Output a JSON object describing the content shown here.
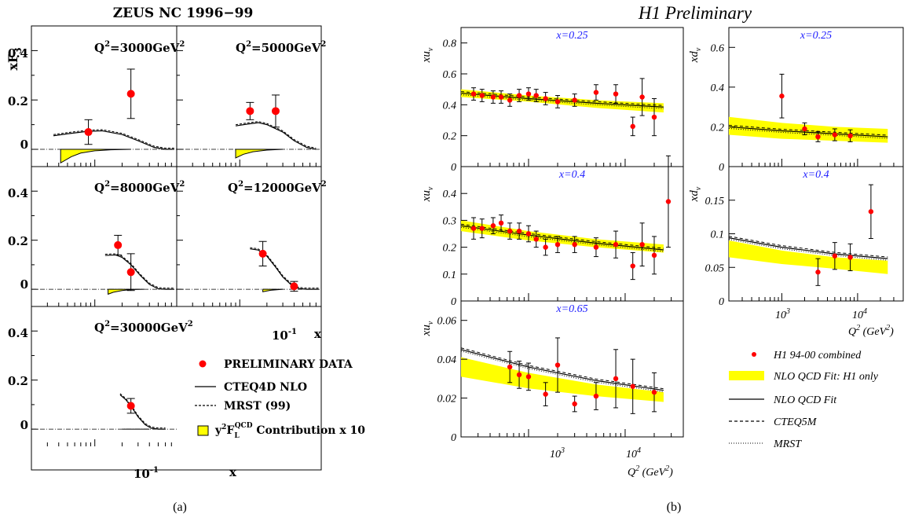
{
  "chart_data": [
    {
      "type": "scatter",
      "panel_label": "(a)",
      "title": "ZEUS NC 1996−99",
      "ylabel": "xF",
      "ylabel_sub": "3",
      "xlabel": "x",
      "x_scale": "log",
      "xlim": [
        0.02,
        0.8
      ],
      "ylim": [
        -0.07,
        0.5
      ],
      "x_tick_label": "10",
      "x_tick_label_exp": "-1",
      "y_ticks": [
        "0",
        "0.2",
        "0.4"
      ],
      "legend": {
        "data": "PRELIMINARY DATA",
        "cteq": "CTEQ4D NLO",
        "mrst": "MRST (99)",
        "fl_pre": "y",
        "fl_sup": "2",
        "fl_mid": "F",
        "fl_sub": "L",
        "fl_qcd": "QCD",
        "fl_post": " Contribution x 10"
      },
      "panels": [
        {
          "label": "Q",
          "label_post": "=3000GeV",
          "sup1": "2",
          "sup2": "2",
          "points": [
            {
              "x": 0.085,
              "y": 0.07,
              "err": 0.05
            },
            {
              "x": 0.25,
              "y": 0.225,
              "err": 0.1
            }
          ],
          "theory": [
            [
              0.035,
              0.055
            ],
            [
              0.05,
              0.063
            ],
            [
              0.08,
              0.072
            ],
            [
              0.12,
              0.075
            ],
            [
              0.2,
              0.06
            ],
            [
              0.3,
              0.035
            ],
            [
              0.45,
              0.008
            ],
            [
              0.6,
              0.0
            ],
            [
              0.75,
              0.0
            ]
          ],
          "fl": [
            [
              0.042,
              -0.055
            ],
            [
              0.055,
              -0.03
            ],
            [
              0.07,
              -0.015
            ],
            [
              0.1,
              -0.006
            ],
            [
              0.15,
              -0.002
            ],
            [
              0.25,
              0.0
            ]
          ]
        },
        {
          "label": "Q",
          "label_post": "=5000GeV",
          "sup1": "2",
          "sup2": "2",
          "points": [
            {
              "x": 0.13,
              "y": 0.155,
              "err": 0.035
            },
            {
              "x": 0.25,
              "y": 0.155,
              "err": 0.065
            }
          ],
          "theory": [
            [
              0.09,
              0.095
            ],
            [
              0.12,
              0.102
            ],
            [
              0.16,
              0.108
            ],
            [
              0.2,
              0.1
            ],
            [
              0.3,
              0.07
            ],
            [
              0.4,
              0.035
            ],
            [
              0.55,
              0.008
            ],
            [
              0.7,
              0.0
            ]
          ],
          "fl": [
            [
              0.09,
              -0.035
            ],
            [
              0.11,
              -0.02
            ],
            [
              0.14,
              -0.01
            ],
            [
              0.2,
              -0.003
            ],
            [
              0.3,
              0.0
            ]
          ]
        },
        {
          "label": "Q",
          "label_post": "=8000GeV",
          "sup1": "2",
          "sup2": "2",
          "points": [
            {
              "x": 0.18,
              "y": 0.18,
              "err": 0.04
            },
            {
              "x": 0.25,
              "y": 0.07,
              "err": 0.075
            }
          ],
          "theory": [
            [
              0.13,
              0.138
            ],
            [
              0.17,
              0.14
            ],
            [
              0.2,
              0.13
            ],
            [
              0.25,
              0.1
            ],
            [
              0.32,
              0.055
            ],
            [
              0.4,
              0.02
            ],
            [
              0.5,
              0.002
            ],
            [
              0.6,
              0.0
            ],
            [
              0.75,
              0.0
            ]
          ],
          "fl": [
            [
              0.14,
              -0.02
            ],
            [
              0.16,
              -0.012
            ],
            [
              0.2,
              -0.005
            ],
            [
              0.25,
              -0.001
            ],
            [
              0.35,
              0.0
            ]
          ]
        },
        {
          "label": "Q",
          "label_post": "=12000GeV",
          "sup1": "2",
          "sup2": "2",
          "points": [
            {
              "x": 0.18,
              "y": 0.145,
              "err": 0.05
            },
            {
              "x": 0.4,
              "y": 0.012,
              "err": 0.02
            }
          ],
          "theory": [
            [
              0.13,
              0.165
            ],
            [
              0.16,
              0.16
            ],
            [
              0.2,
              0.135
            ],
            [
              0.25,
              0.09
            ],
            [
              0.3,
              0.05
            ],
            [
              0.38,
              0.015
            ],
            [
              0.45,
              0.003
            ],
            [
              0.55,
              0.0
            ],
            [
              0.75,
              0.0
            ]
          ],
          "fl": [
            [
              0.18,
              -0.01
            ],
            [
              0.22,
              -0.004
            ],
            [
              0.3,
              0.0
            ]
          ]
        },
        {
          "label": "Q",
          "label_post": "=30000GeV",
          "sup1": "2",
          "sup2": "2",
          "points": [
            {
              "x": 0.25,
              "y": 0.095,
              "err": 0.03
            }
          ],
          "theory": [
            [
              0.19,
              0.14
            ],
            [
              0.22,
              0.12
            ],
            [
              0.26,
              0.085
            ],
            [
              0.3,
              0.05
            ],
            [
              0.36,
              0.018
            ],
            [
              0.42,
              0.004
            ],
            [
              0.5,
              0.0
            ],
            [
              0.6,
              0.0
            ]
          ],
          "fl": [
            [
              0.2,
              0.0
            ],
            [
              0.4,
              0.0
            ]
          ]
        }
      ]
    },
    {
      "type": "scatter",
      "panel_label": "(b)",
      "title": "H1 Preliminary",
      "x_scale": "log",
      "xlim": [
        200,
        40000
      ],
      "x_tick_labels": [
        {
          "base": "10",
          "exp": "3"
        },
        {
          "base": "10",
          "exp": "4"
        }
      ],
      "xlabel_pre": "Q",
      "xlabel_sup": "2",
      "xlabel_post": " (GeV",
      "xlabel_sup2": "2",
      "xlabel_end": ")",
      "legend": {
        "data": "H1 94-00 combined",
        "band": "NLO QCD Fit: H1 only",
        "fit": "NLO QCD Fit",
        "cteq": "CTEQ5M",
        "mrst": "MRST"
      },
      "panels": [
        {
          "id": "xu-025",
          "ylabel": "xu",
          "ylabel_sub": "v",
          "x_value_label": "x=0.25",
          "ylim": [
            0,
            0.9
          ],
          "y_ticks": [
            "0",
            "0.2",
            "0.4",
            "0.6",
            "0.8"
          ],
          "points": [
            [
              270,
              0.47,
              0.04
            ],
            [
              330,
              0.46,
              0.04
            ],
            [
              430,
              0.45,
              0.04
            ],
            [
              520,
              0.45,
              0.04
            ],
            [
              640,
              0.43,
              0.04
            ],
            [
              800,
              0.46,
              0.04
            ],
            [
              1000,
              0.47,
              0.04
            ],
            [
              1200,
              0.46,
              0.04
            ],
            [
              1500,
              0.44,
              0.04
            ],
            [
              2000,
              0.42,
              0.04
            ],
            [
              3000,
              0.43,
              0.04
            ],
            [
              5000,
              0.48,
              0.05
            ],
            [
              8000,
              0.47,
              0.06
            ],
            [
              12000,
              0.26,
              0.06
            ],
            [
              15000,
              0.45,
              0.12
            ],
            [
              20000,
              0.32,
              0.12
            ]
          ],
          "fit": [
            [
              200,
              0.475
            ],
            [
              1000,
              0.44
            ],
            [
              5000,
              0.41
            ],
            [
              25000,
              0.385
            ]
          ],
          "band": [
            [
              200,
              0.5,
              0.45
            ],
            [
              1000,
              0.46,
              0.42
            ],
            [
              5000,
              0.43,
              0.38
            ],
            [
              25000,
              0.41,
              0.35
            ]
          ]
        },
        {
          "id": "xd-025",
          "ylabel": "xd",
          "ylabel_sub": "v",
          "x_value_label": "x=0.25",
          "ylim": [
            0,
            0.7
          ],
          "y_ticks": [
            "0",
            "0.2",
            "0.4",
            "0.6"
          ],
          "points": [
            [
              1000,
              0.355,
              0.11
            ],
            [
              2000,
              0.19,
              0.03
            ],
            [
              3000,
              0.15,
              0.025
            ],
            [
              5000,
              0.16,
              0.03
            ],
            [
              8000,
              0.155,
              0.03
            ]
          ],
          "fit": [
            [
              200,
              0.2
            ],
            [
              1000,
              0.18
            ],
            [
              5000,
              0.165
            ],
            [
              25000,
              0.15
            ]
          ],
          "band": [
            [
              200,
              0.25,
              0.16
            ],
            [
              1000,
              0.22,
              0.14
            ],
            [
              5000,
              0.2,
              0.13
            ],
            [
              25000,
              0.19,
              0.12
            ]
          ]
        },
        {
          "id": "xu-04",
          "ylabel": "xu",
          "ylabel_sub": "v",
          "x_value_label": "x=0.4",
          "ylim": [
            0,
            0.5
          ],
          "y_ticks": [
            "0",
            "0.1",
            "0.2",
            "0.3",
            "0.4"
          ],
          "points": [
            [
              270,
              0.27,
              0.04
            ],
            [
              330,
              0.27,
              0.035
            ],
            [
              430,
              0.28,
              0.03
            ],
            [
              520,
              0.29,
              0.03
            ],
            [
              640,
              0.26,
              0.03
            ],
            [
              800,
              0.26,
              0.03
            ],
            [
              1000,
              0.25,
              0.03
            ],
            [
              1200,
              0.23,
              0.03
            ],
            [
              1500,
              0.2,
              0.03
            ],
            [
              2000,
              0.21,
              0.03
            ],
            [
              3000,
              0.21,
              0.03
            ],
            [
              5000,
              0.2,
              0.035
            ],
            [
              8000,
              0.21,
              0.05
            ],
            [
              12000,
              0.13,
              0.05
            ],
            [
              15000,
              0.21,
              0.08
            ],
            [
              20000,
              0.17,
              0.07
            ],
            [
              28000,
              0.37,
              0.17
            ]
          ],
          "fit": [
            [
              200,
              0.28
            ],
            [
              1000,
              0.245
            ],
            [
              5000,
              0.215
            ],
            [
              25000,
              0.19
            ]
          ],
          "band": [
            [
              200,
              0.3,
              0.26
            ],
            [
              1000,
              0.26,
              0.225
            ],
            [
              5000,
              0.23,
              0.2
            ],
            [
              25000,
              0.21,
              0.18
            ]
          ]
        },
        {
          "id": "xd-04",
          "ylabel": "xd",
          "ylabel_sub": "v",
          "x_value_label": "x=0.4",
          "ylim": [
            0,
            0.2
          ],
          "y_ticks": [
            "0",
            "0.05",
            "0.1",
            "0.15"
          ],
          "points": [
            [
              3000,
              0.043,
              0.02
            ],
            [
              5000,
              0.067,
              0.02
            ],
            [
              8000,
              0.065,
              0.02
            ],
            [
              15000,
              0.133,
              0.04
            ]
          ],
          "fit": [
            [
              200,
              0.094
            ],
            [
              1000,
              0.08
            ],
            [
              5000,
              0.07
            ],
            [
              25000,
              0.063
            ]
          ],
          "band": [
            [
              200,
              0.09,
              0.065
            ],
            [
              1000,
              0.075,
              0.055
            ],
            [
              5000,
              0.065,
              0.048
            ],
            [
              25000,
              0.06,
              0.04
            ]
          ]
        },
        {
          "id": "xu-065",
          "ylabel": "xu",
          "ylabel_sub": "v",
          "x_value_label": "x=0.65",
          "ylim": [
            0,
            0.07
          ],
          "y_ticks": [
            "0",
            "0.02",
            "0.04",
            "0.06"
          ],
          "points": [
            [
              640,
              0.036,
              0.008
            ],
            [
              800,
              0.032,
              0.007
            ],
            [
              1000,
              0.031,
              0.007
            ],
            [
              1500,
              0.022,
              0.006
            ],
            [
              2000,
              0.037,
              0.014
            ],
            [
              3000,
              0.017,
              0.004
            ],
            [
              5000,
              0.021,
              0.007
            ],
            [
              8000,
              0.03,
              0.015
            ],
            [
              12000,
              0.026,
              0.014
            ],
            [
              20000,
              0.023,
              0.01
            ]
          ],
          "fit": [
            [
              200,
              0.045
            ],
            [
              1000,
              0.036
            ],
            [
              5000,
              0.029
            ],
            [
              25000,
              0.024
            ]
          ],
          "band": [
            [
              200,
              0.041,
              0.031
            ],
            [
              1000,
              0.033,
              0.025
            ],
            [
              5000,
              0.027,
              0.021
            ],
            [
              25000,
              0.023,
              0.018
            ]
          ]
        }
      ]
    }
  ]
}
